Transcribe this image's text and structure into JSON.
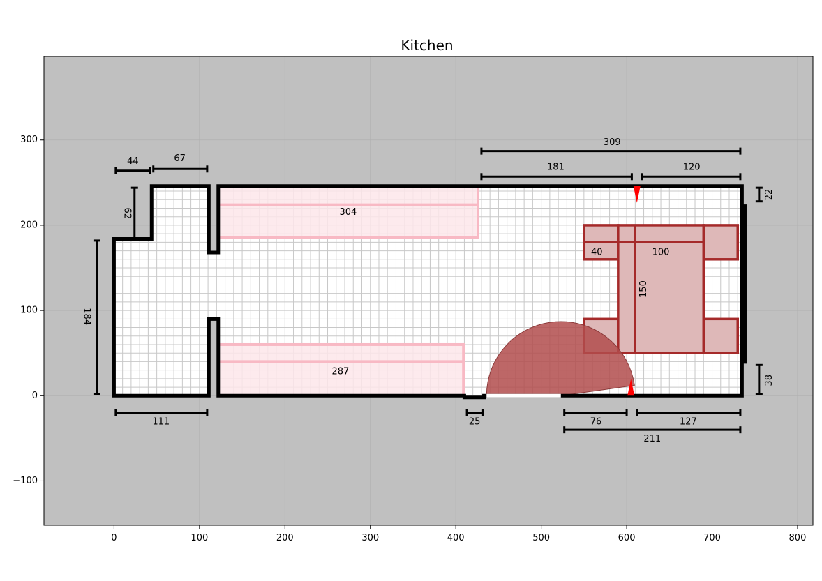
{
  "title": "Kitchen",
  "axes": {
    "xlim": [
      -82,
      818
    ],
    "ylim": [
      -152,
      398
    ],
    "xticks": [
      0,
      100,
      200,
      300,
      400,
      500,
      600,
      700,
      800
    ],
    "yticks": [
      -100,
      0,
      100,
      200,
      300
    ],
    "xtick_labels": [
      "0",
      "100",
      "200",
      "300",
      "400",
      "500",
      "600",
      "700",
      "800"
    ],
    "ytick_labels": [
      "−100",
      "0",
      "100",
      "200",
      "300"
    ],
    "grid": true,
    "background": "#c0c0c0"
  },
  "colors": {
    "wall": "#000000",
    "floor": "#ffffff",
    "floor_grid": "#c8c8c8",
    "counter": "#f8b9c4",
    "counter_fill": "#fde6ea",
    "table": "#a52a2a",
    "table_fill": "#deb8b8",
    "door_swing": "#b24c4c",
    "marker": "#ff0000"
  },
  "room": {
    "outline": [
      [
        0,
        0
      ],
      [
        111,
        0
      ],
      [
        111,
        90
      ],
      [
        122,
        90
      ],
      [
        122,
        0
      ],
      [
        410,
        0
      ],
      [
        410,
        -2
      ],
      [
        433,
        -2
      ],
      [
        433,
        0
      ],
      [
        735,
        0
      ],
      [
        735,
        246
      ],
      [
        122,
        246
      ],
      [
        122,
        168
      ],
      [
        111,
        168
      ],
      [
        111,
        246
      ],
      [
        44,
        246
      ],
      [
        44,
        184
      ],
      [
        0,
        184
      ]
    ]
  },
  "counters": [
    {
      "label": "304",
      "x": 122,
      "y": 186,
      "w": 304,
      "h": 60,
      "divider": 224,
      "label_at": [
        274,
        215
      ]
    },
    {
      "label": "287",
      "x": 122,
      "y": 0,
      "w": 287,
      "h": 60,
      "divider": 40,
      "label_at": [
        265,
        28
      ]
    }
  ],
  "table": {
    "top": {
      "x": 590,
      "y": 50,
      "w": 100,
      "h": 150
    },
    "chairs": [
      {
        "x": 550,
        "y": 160,
        "w": 40,
        "h": 40
      },
      {
        "x": 550,
        "y": 50,
        "w": 40,
        "h": 40
      },
      {
        "x": 690,
        "y": 160,
        "w": 40,
        "h": 40
      },
      {
        "x": 690,
        "y": 50,
        "w": 40,
        "h": 40
      }
    ],
    "measure_h": {
      "x1": 550,
      "x2": 590,
      "y": 180,
      "label": "40"
    },
    "measure_h2": {
      "x1": 590,
      "x2": 690,
      "y": 180,
      "label": "100"
    },
    "measure_v": {
      "x": 610,
      "y1": 50,
      "y2": 200,
      "label": "150"
    }
  },
  "radiator": {
    "x": 734,
    "y": 38,
    "w": 6,
    "h": 186
  },
  "door": {
    "cx": 523,
    "cy": 0,
    "r": 87,
    "a1": 8,
    "a2": 180
  },
  "markers": [
    {
      "x": 612,
      "y": 246,
      "dir": "down"
    },
    {
      "x": 605,
      "y": 0,
      "dir": "up"
    }
  ],
  "dimensions": [
    {
      "label": "44",
      "orient": "h",
      "a": 2,
      "b": 42,
      "pos": 264,
      "lx": 22,
      "ly": 275
    },
    {
      "label": "67",
      "orient": "h",
      "a": 46,
      "b": 109,
      "pos": 266,
      "lx": 77,
      "ly": 278
    },
    {
      "label": "62",
      "orient": "v",
      "a": 184,
      "b": 244,
      "pos": 24,
      "lx": 15,
      "ly": 214
    },
    {
      "label": "184",
      "orient": "v",
      "a": 2,
      "b": 182,
      "pos": -20,
      "lx": -32,
      "ly": 93
    },
    {
      "label": "111",
      "orient": "h",
      "a": 2,
      "b": 109,
      "pos": -20,
      "lx": 55,
      "ly": -31
    },
    {
      "label": "25",
      "orient": "h",
      "a": 413,
      "b": 432,
      "pos": -20,
      "lx": 422,
      "ly": -31
    },
    {
      "label": "76",
      "orient": "h",
      "a": 527,
      "b": 600,
      "pos": -20,
      "lx": 564,
      "ly": -31
    },
    {
      "label": "127",
      "orient": "h",
      "a": 612,
      "b": 733,
      "pos": -20,
      "lx": 672,
      "ly": -31
    },
    {
      "label": "211",
      "orient": "h",
      "a": 527,
      "b": 733,
      "pos": -40,
      "lx": 630,
      "ly": -51
    },
    {
      "label": "309",
      "orient": "h",
      "a": 430,
      "b": 733,
      "pos": 287,
      "lx": 583,
      "ly": 297
    },
    {
      "label": "181",
      "orient": "h",
      "a": 430,
      "b": 606,
      "pos": 257,
      "lx": 517,
      "ly": 268
    },
    {
      "label": "120",
      "orient": "h",
      "a": 618,
      "b": 733,
      "pos": 257,
      "lx": 676,
      "ly": 268
    },
    {
      "label": "22",
      "orient": "v",
      "a": 228,
      "b": 244,
      "pos": 755,
      "lx": 767,
      "ly": 236
    },
    {
      "label": "38",
      "orient": "v",
      "a": 2,
      "b": 36,
      "pos": 755,
      "lx": 767,
      "ly": 18
    }
  ]
}
